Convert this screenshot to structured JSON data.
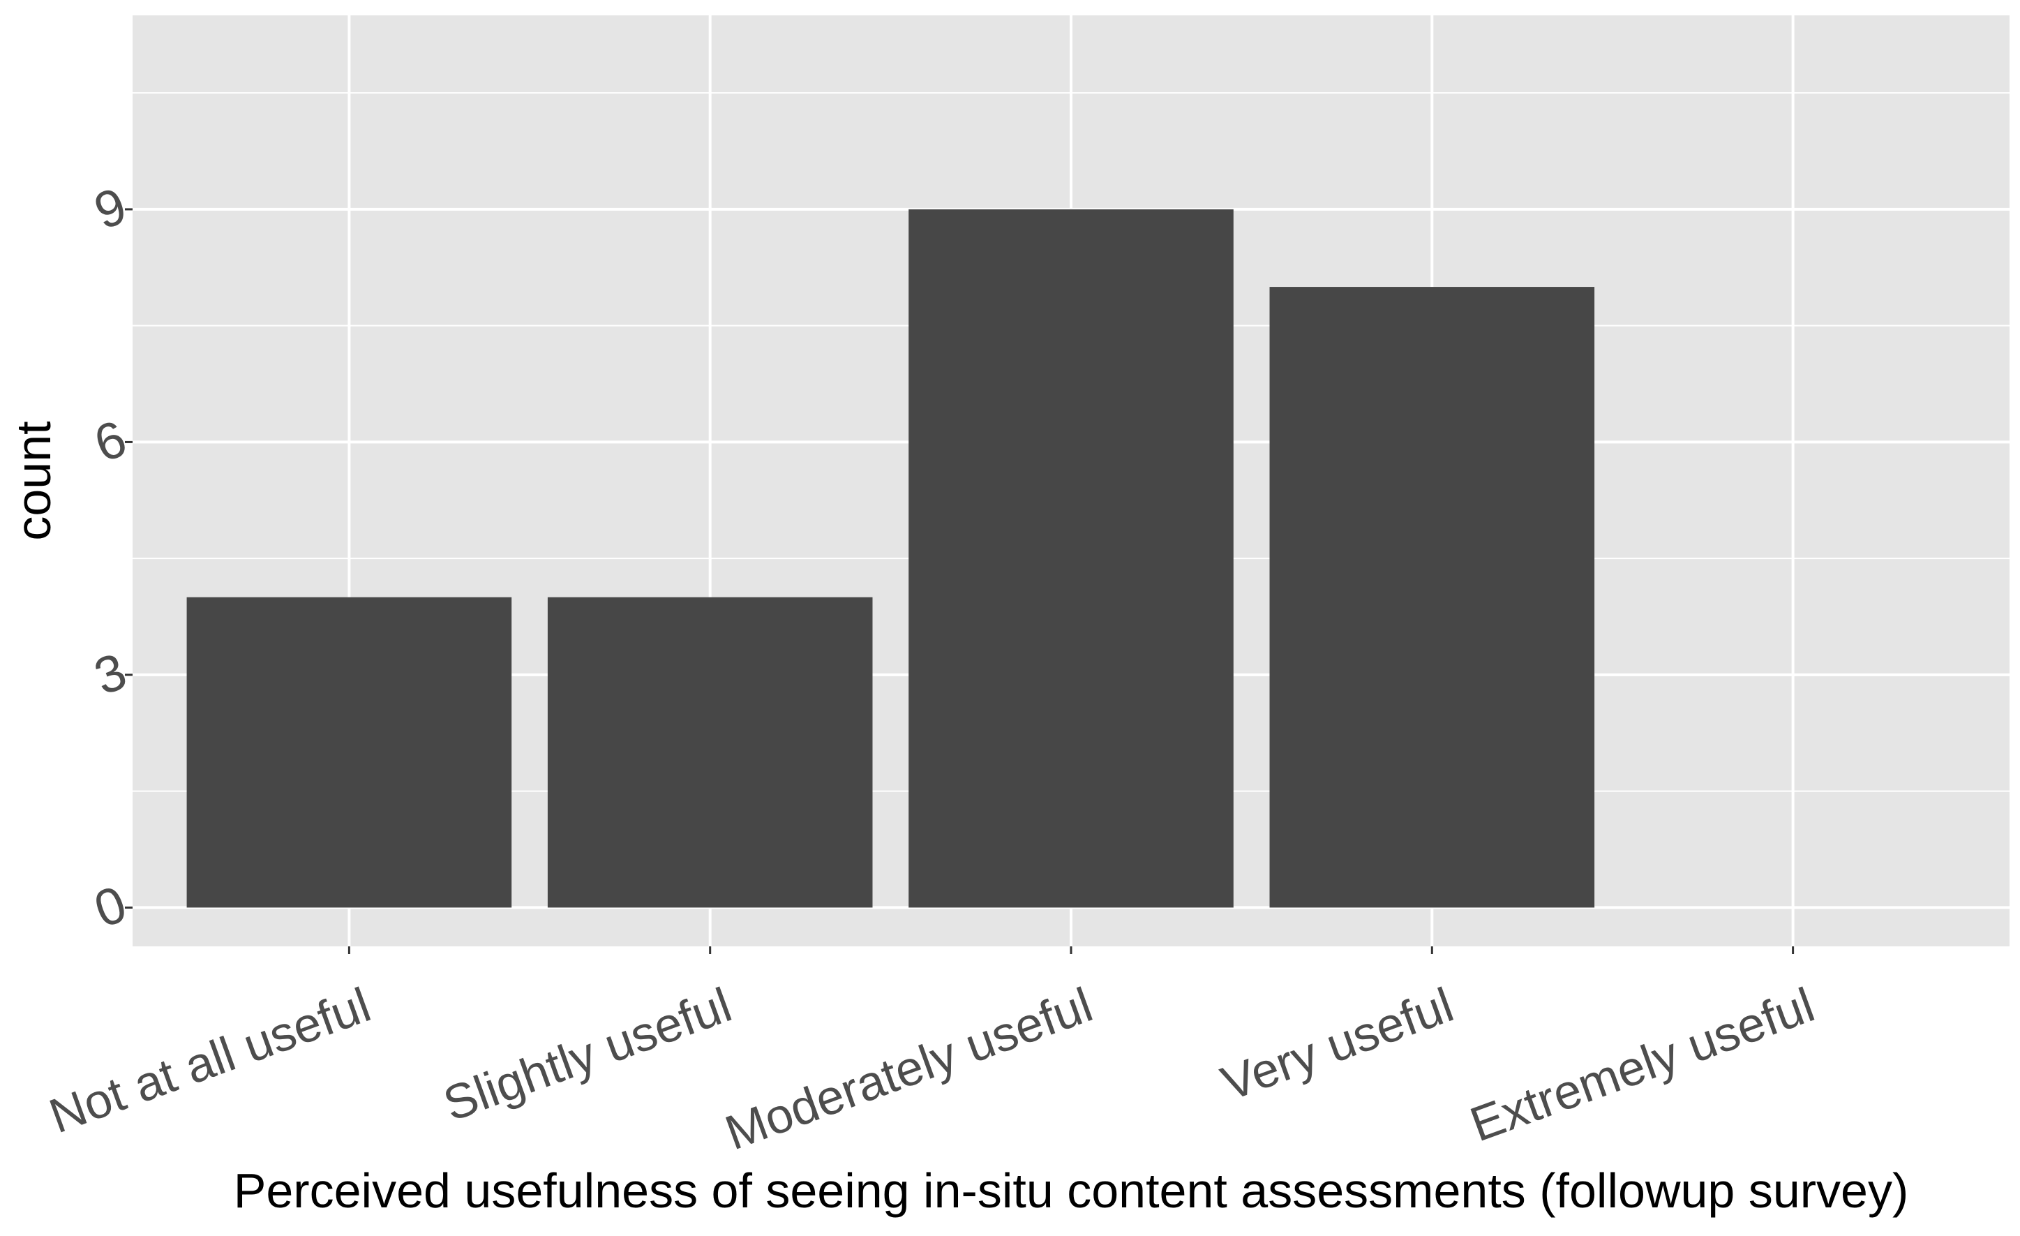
{
  "chart_data": {
    "type": "bar",
    "categories": [
      "Not at all useful",
      "Slightly useful",
      "Moderately useful",
      "Very useful",
      "Extremely useful"
    ],
    "values": [
      4,
      4,
      9,
      8,
      0
    ],
    "title": "",
    "xlabel": "Perceived usefulness of seeing in-situ content assessments (followup survey)",
    "ylabel": "count",
    "ylim": [
      -0.5,
      11.5
    ],
    "yticks": [
      0,
      3,
      6,
      9
    ],
    "yticks_minor": [
      1.5,
      4.5,
      7.5,
      10.5
    ],
    "grid": true,
    "legend": "none",
    "colors": {
      "panel_background": "#e5e5e5",
      "gridline": "#ffffff",
      "bar_fill": "#474747",
      "tick_text": "#4d4d4d",
      "axis_title": "#000000"
    }
  }
}
